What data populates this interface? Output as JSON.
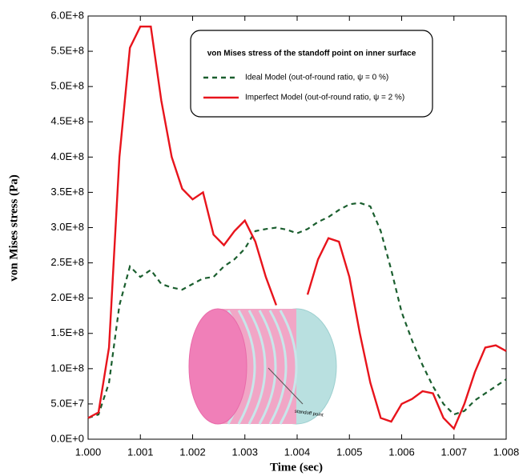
{
  "chart_data": {
    "type": "line",
    "legend_title": "von Mises stress of the standoff point on inner surface",
    "xlabel": "Time (sec)",
    "ylabel": "von Mises stress (Pa)",
    "inset_label": "standoff point",
    "x": [
      1.0,
      1.0002,
      1.0004,
      1.0006,
      1.0008,
      1.001,
      1.0012,
      1.0014,
      1.0016,
      1.0018,
      1.002,
      1.0022,
      1.0024,
      1.0026,
      1.0028,
      1.003,
      1.0032,
      1.0034,
      1.0036,
      1.0038,
      1.004,
      1.0042,
      1.0044,
      1.0046,
      1.0048,
      1.005,
      1.0052,
      1.0054,
      1.0056,
      1.0058,
      1.006,
      1.0062,
      1.0064,
      1.0066,
      1.0068,
      1.007,
      1.0072,
      1.0074,
      1.0076,
      1.0078,
      1.008
    ],
    "series": [
      {
        "name": "Ideal Model  (out-of-round ratio, ψ = 0 %)",
        "color": "#1a5e2e",
        "dashed": true,
        "values": [
          30000000,
          35000000,
          80000000,
          190000000,
          245000000,
          230000000,
          240000000,
          220000000,
          215000000,
          212000000,
          220000000,
          228000000,
          230000000,
          245000000,
          255000000,
          270000000,
          295000000,
          298000000,
          300000000,
          297000000,
          292000000,
          298000000,
          308000000,
          315000000,
          325000000,
          333000000,
          335000000,
          330000000,
          295000000,
          240000000,
          180000000,
          140000000,
          105000000,
          75000000,
          50000000,
          35000000,
          40000000,
          55000000,
          65000000,
          75000000,
          85000000
        ]
      },
      {
        "name": "Imperfect Model (out-of-round ratio, ψ = 2 %)",
        "color": "#e8141c",
        "dashed": false,
        "values": [
          30000000,
          38000000,
          130000000,
          400000000,
          555000000,
          585000000,
          585000000,
          480000000,
          400000000,
          355000000,
          340000000,
          350000000,
          290000000,
          275000000,
          295000000,
          310000000,
          280000000,
          230000000,
          190000000,
          null,
          null,
          205000000,
          255000000,
          285000000,
          280000000,
          230000000,
          150000000,
          80000000,
          30000000,
          25000000,
          50000000,
          57000000,
          68000000,
          65000000,
          30000000,
          15000000,
          50000000,
          95000000,
          130000000,
          133000000,
          125000000
        ]
      }
    ],
    "xlim": [
      1.0,
      1.008
    ],
    "xticks": [
      {
        "value": 1.0,
        "label": "1.000"
      },
      1.001,
      1.002,
      1.003,
      1.004,
      1.005,
      1.006,
      1.007,
      1.008
    ],
    "ylim": [
      0,
      600000000
    ],
    "yticks": [
      {
        "value": 0,
        "label": "0.0E+0"
      },
      {
        "value": 50000000,
        "label": "5.0E+7"
      },
      {
        "value": 100000000,
        "label": "1.0E+8"
      },
      {
        "value": 150000000,
        "label": "1.5E+8"
      },
      {
        "value": 200000000,
        "label": "2.0E+8"
      },
      {
        "value": 250000000,
        "label": "2.5E+8"
      },
      {
        "value": 300000000,
        "label": "3.0E+8"
      },
      {
        "value": 350000000,
        "label": "3.5E+8"
      },
      {
        "value": 400000000,
        "label": "4.0E+8"
      },
      {
        "value": 450000000,
        "label": "4.5E+8"
      },
      {
        "value": 500000000,
        "label": "5.0E+8"
      },
      {
        "value": 550000000,
        "label": "5.5E+8"
      },
      {
        "value": 600000000,
        "label": "6.0E+8"
      }
    ],
    "grid": false
  }
}
